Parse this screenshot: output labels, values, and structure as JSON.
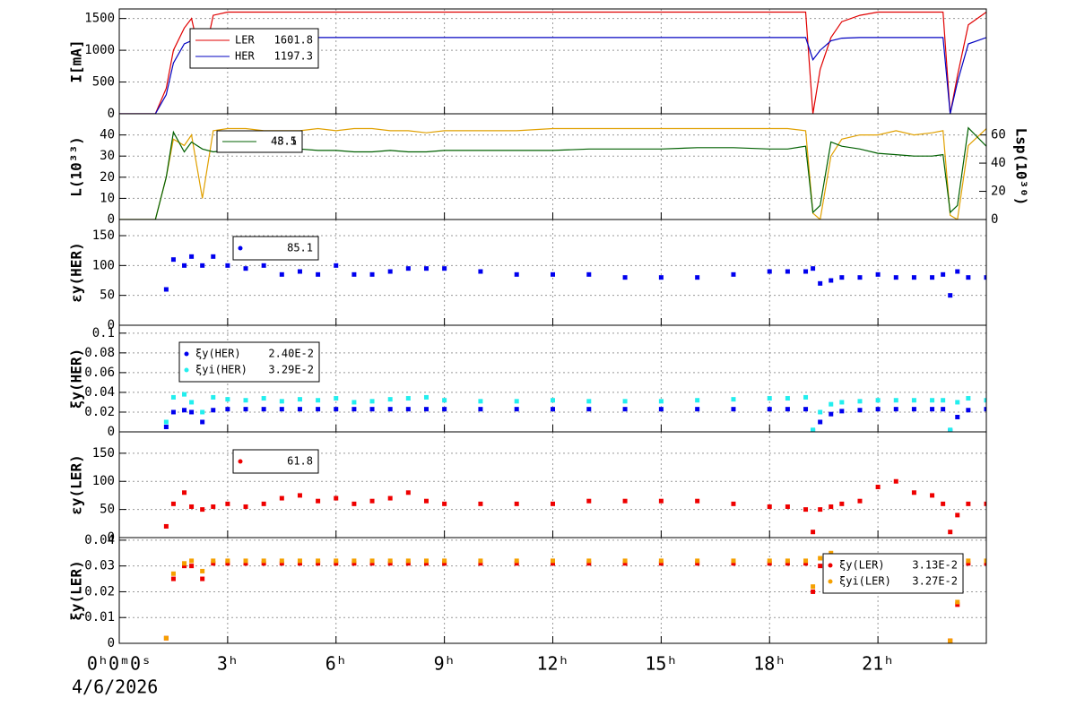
{
  "chart_data": {
    "xlim": [
      0,
      24
    ],
    "xticks": [
      {
        "value": 0,
        "label": "0ʰ0ᵐ0ˢ"
      },
      {
        "value": 3,
        "label": "3ʰ"
      },
      {
        "value": 6,
        "label": "6ʰ"
      },
      {
        "value": 9,
        "label": "9ʰ"
      },
      {
        "value": 12,
        "label": "12ʰ"
      },
      {
        "value": 15,
        "label": "15ʰ"
      },
      {
        "value": 18,
        "label": "18ʰ"
      },
      {
        "value": 21,
        "label": "21ʰ"
      }
    ],
    "date": "4/6/2026",
    "grid": true,
    "x": [
      0,
      1,
      1.3,
      1.5,
      1.8,
      2,
      2.3,
      2.6,
      3,
      3.5,
      4,
      4.5,
      5,
      5.5,
      6,
      6.5,
      7,
      7.5,
      8,
      8.5,
      9,
      10,
      11,
      12,
      13,
      14,
      15,
      16,
      17,
      18,
      18.5,
      19,
      19.2,
      19.4,
      19.7,
      20,
      20.5,
      21,
      21.5,
      22,
      22.5,
      22.8,
      23,
      23.2,
      23.5,
      24
    ],
    "panels": [
      {
        "type": "line",
        "ylabel": "I[mA]",
        "ylim": [
          0,
          1650
        ],
        "yticks": [
          0,
          500,
          1000,
          1500
        ],
        "series": [
          {
            "name": "LER",
            "color": "#e00000",
            "legend_value": 1601.8,
            "values": [
              0,
              0,
              400,
              1000,
              1350,
              1500,
              750,
              1550,
              1600,
              1600,
              1600,
              1600,
              1600,
              1600,
              1600,
              1600,
              1600,
              1600,
              1600,
              1600,
              1600,
              1600,
              1600,
              1600,
              1600,
              1600,
              1600,
              1600,
              1600,
              1600,
              1600,
              1600,
              0,
              700,
              1200,
              1450,
              1550,
              1600,
              1600,
              1600,
              1600,
              1600,
              0,
              600,
              1400,
              1600
            ]
          },
          {
            "name": "HER",
            "color": "#0000c0",
            "legend_value": 1197.3,
            "values": [
              0,
              0,
              300,
              800,
              1100,
              1150,
              1000,
              1180,
              1200,
              1200,
              1200,
              1200,
              1200,
              1200,
              1200,
              1200,
              1200,
              1200,
              1200,
              1200,
              1200,
              1200,
              1200,
              1200,
              1200,
              1200,
              1200,
              1200,
              1200,
              1200,
              1200,
              1200,
              850,
              1000,
              1150,
              1190,
              1200,
              1200,
              1200,
              1200,
              1200,
              1200,
              0,
              500,
              1100,
              1200
            ]
          }
        ]
      },
      {
        "type": "line",
        "ylabel": "L(10³³)",
        "ylim": [
          0,
          50
        ],
        "yticks": [
          0,
          10,
          20,
          30,
          40
        ],
        "y2label": "Lsp(10³⁰)",
        "y2lim": [
          0,
          75
        ],
        "y2ticks": [
          0,
          20,
          40,
          60
        ],
        "series": [
          {
            "color": "#e0a000",
            "legend_value": 43.1,
            "values": [
              0,
              0,
              20,
              38,
              35,
              40,
              10,
              42,
              43,
              43,
              42,
              42,
              42,
              43,
              42,
              43,
              43,
              42,
              42,
              41,
              42,
              42,
              42,
              43,
              43,
              43,
              43,
              43,
              43,
              43,
              43,
              42,
              3,
              0,
              30,
              38,
              40,
              40,
              42,
              40,
              41,
              42,
              2,
              0,
              35,
              43
            ]
          },
          {
            "color": "#006000",
            "axis": "y2",
            "legend_value": 48.5,
            "values": [
              0,
              0,
              30,
              62,
              48,
              55,
              50,
              48,
              49,
              50,
              49,
              48,
              50,
              49,
              49,
              48,
              48,
              49,
              48,
              48,
              49,
              49,
              49,
              49,
              50,
              50,
              50,
              51,
              51,
              50,
              50,
              52,
              5,
              10,
              55,
              52,
              50,
              47,
              46,
              45,
              45,
              46,
              5,
              10,
              65,
              52
            ]
          }
        ]
      },
      {
        "type": "scatter",
        "ylabel": "εy(HER)",
        "ylim": [
          0,
          177
        ],
        "yticks": [
          0,
          50,
          100,
          150
        ],
        "series": [
          {
            "color": "#0000ee",
            "legend_value": 85.1,
            "values": [
              null,
              null,
              60,
              110,
              100,
              115,
              100,
              115,
              100,
              95,
              100,
              85,
              90,
              85,
              100,
              85,
              85,
              90,
              95,
              95,
              95,
              90,
              85,
              85,
              85,
              80,
              80,
              80,
              85,
              90,
              90,
              90,
              95,
              70,
              75,
              80,
              80,
              85,
              80,
              80,
              80,
              85,
              50,
              90,
              80,
              80
            ]
          }
        ]
      },
      {
        "type": "scatter",
        "ylabel": "ξy(HER)",
        "ylim": [
          0,
          0.108
        ],
        "yticks": [
          0,
          0.02,
          0.04,
          0.06,
          0.08,
          0.1
        ],
        "series": [
          {
            "name": "ξy(HER)",
            "color": "#0000ee",
            "legend_value": {
              "value": 0.024,
              "label": "2.40E-2"
            },
            "values": [
              null,
              null,
              0.005,
              0.02,
              0.022,
              0.02,
              0.01,
              0.022,
              0.023,
              0.023,
              0.023,
              0.023,
              0.023,
              0.023,
              0.023,
              0.023,
              0.023,
              0.023,
              0.023,
              0.023,
              0.023,
              0.023,
              0.023,
              0.023,
              0.023,
              0.023,
              0.023,
              0.023,
              0.023,
              0.023,
              0.023,
              0.023,
              0.001,
              0.01,
              0.018,
              0.021,
              0.022,
              0.023,
              0.023,
              0.023,
              0.023,
              0.023,
              0.001,
              0.015,
              0.022,
              0.023
            ]
          },
          {
            "name": "ξyi(HER)",
            "color": "#22eeee",
            "legend_value": {
              "value": 0.0329,
              "label": "3.29E-2"
            },
            "values": [
              null,
              null,
              0.01,
              0.035,
              0.038,
              0.03,
              0.02,
              0.035,
              0.033,
              0.032,
              0.034,
              0.031,
              0.033,
              0.032,
              0.034,
              0.03,
              0.031,
              0.033,
              0.034,
              0.035,
              0.032,
              0.031,
              0.031,
              0.032,
              0.031,
              0.031,
              0.031,
              0.032,
              0.033,
              0.034,
              0.034,
              0.035,
              0.002,
              0.02,
              0.028,
              0.03,
              0.031,
              0.032,
              0.032,
              0.032,
              0.032,
              0.032,
              0.002,
              0.03,
              0.034,
              0.032
            ]
          }
        ]
      },
      {
        "type": "scatter",
        "ylabel": "εy(LER)",
        "ylim": [
          0,
          188
        ],
        "yticks": [
          0,
          50,
          100,
          150
        ],
        "series": [
          {
            "color": "#ee0000",
            "legend_value": 61.8,
            "values": [
              null,
              null,
              20,
              60,
              80,
              55,
              50,
              55,
              60,
              55,
              60,
              70,
              75,
              65,
              70,
              60,
              65,
              70,
              80,
              65,
              60,
              60,
              60,
              60,
              65,
              65,
              65,
              65,
              60,
              55,
              55,
              50,
              10,
              50,
              55,
              60,
              65,
              90,
              100,
              80,
              75,
              60,
              10,
              40,
              60,
              60
            ]
          }
        ]
      },
      {
        "type": "scatter",
        "ylabel": "ξy(LER)",
        "ylim": [
          0,
          0.041
        ],
        "yticks": [
          0,
          0.01,
          0.02,
          0.03,
          0.04
        ],
        "series": [
          {
            "name": "ξy(LER)",
            "color": "#ee0000",
            "legend_value": {
              "value": 0.0313,
              "label": "3.13E-2"
            },
            "values": [
              null,
              null,
              0.002,
              0.025,
              0.03,
              0.03,
              0.025,
              0.031,
              0.031,
              0.031,
              0.031,
              0.031,
              0.031,
              0.031,
              0.031,
              0.031,
              0.031,
              0.031,
              0.031,
              0.031,
              0.031,
              0.031,
              0.031,
              0.031,
              0.031,
              0.031,
              0.031,
              0.031,
              0.031,
              0.031,
              0.031,
              0.031,
              0.02,
              0.03,
              0.033,
              0.032,
              0.032,
              0.032,
              0.032,
              0.032,
              0.032,
              0.032,
              0.001,
              0.015,
              0.031,
              0.031
            ]
          },
          {
            "name": "ξyi(LER)",
            "color": "#f5a000",
            "legend_value": {
              "value": 0.0327,
              "label": "3.27E-2"
            },
            "values": [
              null,
              null,
              0.002,
              0.027,
              0.031,
              0.032,
              0.028,
              0.032,
              0.032,
              0.032,
              0.032,
              0.032,
              0.032,
              0.032,
              0.032,
              0.032,
              0.032,
              0.032,
              0.032,
              0.032,
              0.032,
              0.032,
              0.032,
              0.032,
              0.032,
              0.032,
              0.032,
              0.032,
              0.032,
              0.032,
              0.032,
              0.032,
              0.022,
              0.033,
              0.035,
              0.034,
              0.034,
              0.034,
              0.034,
              0.034,
              0.034,
              0.034,
              0.001,
              0.016,
              0.032,
              0.032
            ]
          }
        ]
      }
    ]
  }
}
